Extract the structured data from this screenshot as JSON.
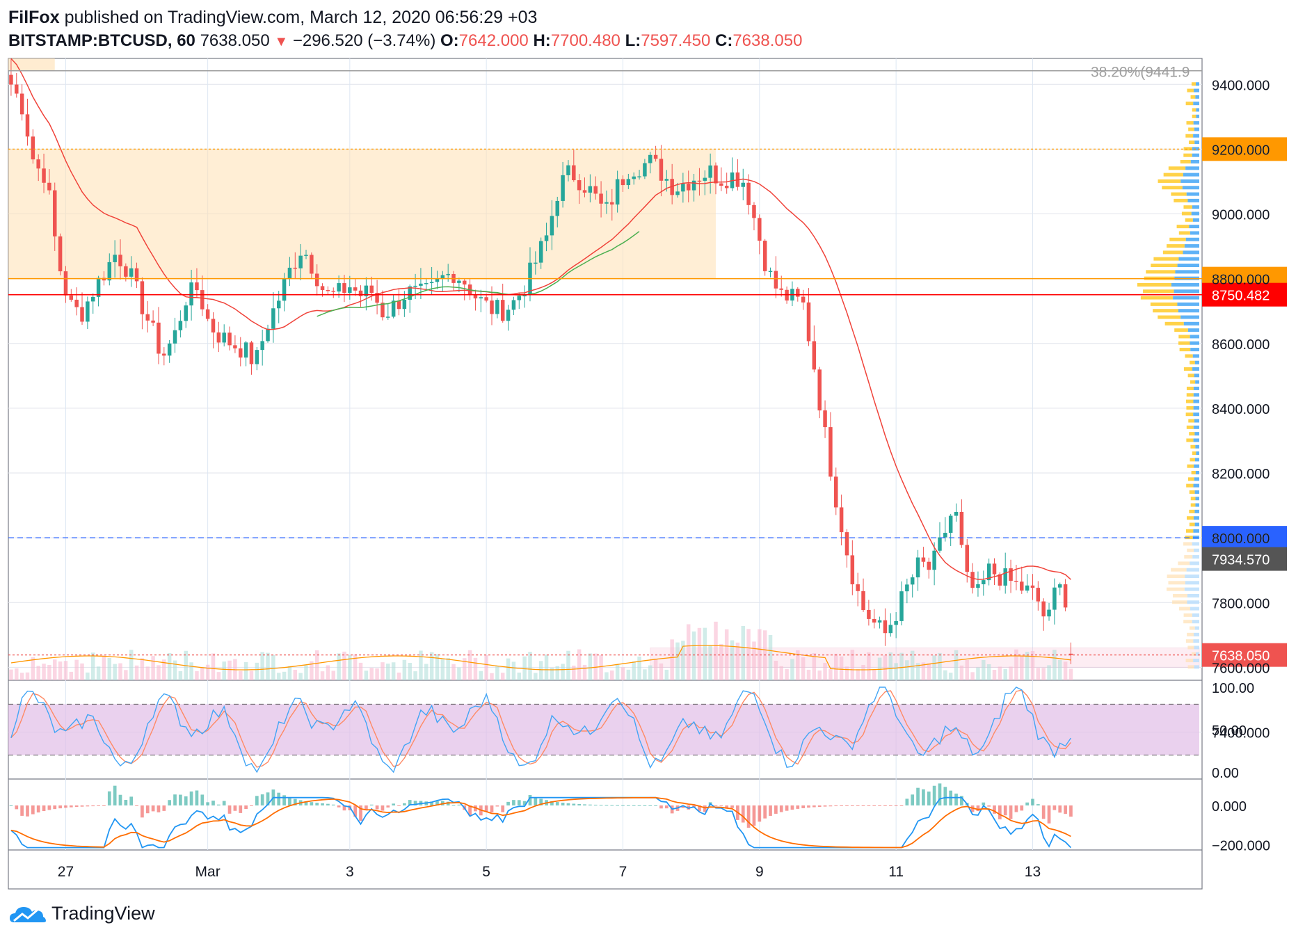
{
  "header": {
    "author": "FilFox",
    "published": "published on TradingView.com, March 12, 2020 06:56:29 +03",
    "symbol": "BITSTAMP:BTCUSD, 60",
    "last": "7638.050",
    "change": "−296.520 (−3.74%)",
    "o_label": "O:",
    "o": "7642.000",
    "h_label": "H:",
    "h": "7700.480",
    "l_label": "L:",
    "l": "7597.450",
    "c_label": "C:",
    "c": "7638.050"
  },
  "brand": {
    "name": "TradingView",
    "icon": "tradingview-cloud-icon"
  },
  "colors": {
    "up": "#26a69a",
    "down": "#ef5350",
    "ma_red": "#f0433a",
    "ma_green": "#4caf50",
    "orange": "#ff9800",
    "blue_line": "#2962ff",
    "rsi_band": "#e1bee7",
    "macd_blue": "#2196f3",
    "macd_orange": "#ff6d00"
  },
  "chart_data": {
    "type": "candlestick",
    "symbol": "BITSTAMP:BTCUSD",
    "interval": "60",
    "price_axis": {
      "ylim": [
        7560,
        9480
      ],
      "ticks": [
        "9400.000",
        "9200.000",
        "9000.000",
        "8800.000",
        "8600.000",
        "8400.000",
        "8200.000",
        "8000.000",
        "7800.000",
        "7600.000",
        "7400.000"
      ]
    },
    "x_ticks": [
      {
        "label": "27",
        "slot": 10
      },
      {
        "label": "Mar",
        "slot": 36
      },
      {
        "label": "3",
        "slot": 62
      },
      {
        "label": "5",
        "slot": 87
      },
      {
        "label": "7",
        "slot": 112
      },
      {
        "label": "9",
        "slot": 137
      },
      {
        "label": "11",
        "slot": 162
      },
      {
        "label": "13",
        "slot": 187
      }
    ],
    "slots_total": 218,
    "candles_count": 195,
    "key_prices": [
      {
        "name": "close_series",
        "value": [
          9400,
          9330,
          9150,
          9120,
          8860,
          8720,
          8690,
          8760,
          8820,
          8880,
          8830,
          8740,
          8650,
          8560,
          8620,
          8740,
          8770,
          8660,
          8620,
          8600,
          8580,
          8540,
          8660,
          8740,
          8830,
          8900,
          8830,
          8750,
          8750,
          8780,
          8750,
          8760,
          8690,
          8720,
          8760,
          8750,
          8760,
          8800,
          8820,
          8790,
          8740,
          8710,
          8700,
          8720,
          8770,
          8850,
          8930,
          9080,
          9130,
          9100,
          9060,
          9000,
          9080,
          9140,
          9150,
          9160,
          9120,
          9080,
          9100,
          9120,
          9130,
          9110,
          9120,
          9100,
          8960,
          8820,
          8750,
          8740,
          8720,
          8520,
          8290,
          8090,
          7920,
          7790,
          7740,
          7700,
          7770,
          7850,
          7920,
          7900,
          8000,
          8100,
          7870,
          7820,
          7900,
          7880,
          7860,
          7840,
          7820,
          7730,
          7900,
          7700
        ]
      }
    ],
    "levels": [
      {
        "label": "38.20%(9441.9",
        "price": 9441.9,
        "color": "#9e9e9e",
        "style": "solid"
      },
      {
        "label": "9200.000",
        "price": 9200,
        "color": "#ff9800",
        "style": "dotted"
      },
      {
        "label": "8800.000",
        "price": 8800,
        "color": "#ff9800",
        "style": "solid"
      },
      {
        "label": "8750.482",
        "price": 8750.482,
        "color": "#ff0000",
        "style": "solid"
      },
      {
        "label": "8000.000",
        "price": 8000,
        "color": "#2962ff",
        "style": "dashed"
      },
      {
        "label": "7934.570",
        "price": 7934.57,
        "color": "#555555",
        "style": "none"
      },
      {
        "label": "7638.050",
        "price": 7638.05,
        "color": "#ef5350",
        "style": "dotted"
      }
    ],
    "zone": {
      "from": 8800,
      "to": 9200,
      "color": "#ffe0b2"
    },
    "support_box": {
      "from": 7600,
      "to": 7660,
      "color": "#f8bbd0"
    },
    "rsi_panel": {
      "ticks": [
        "100.00",
        "50.00",
        "0.00"
      ],
      "band": [
        20,
        80
      ]
    },
    "macd_panel": {
      "ticks": [
        "0.000",
        "−200.000"
      ]
    }
  }
}
